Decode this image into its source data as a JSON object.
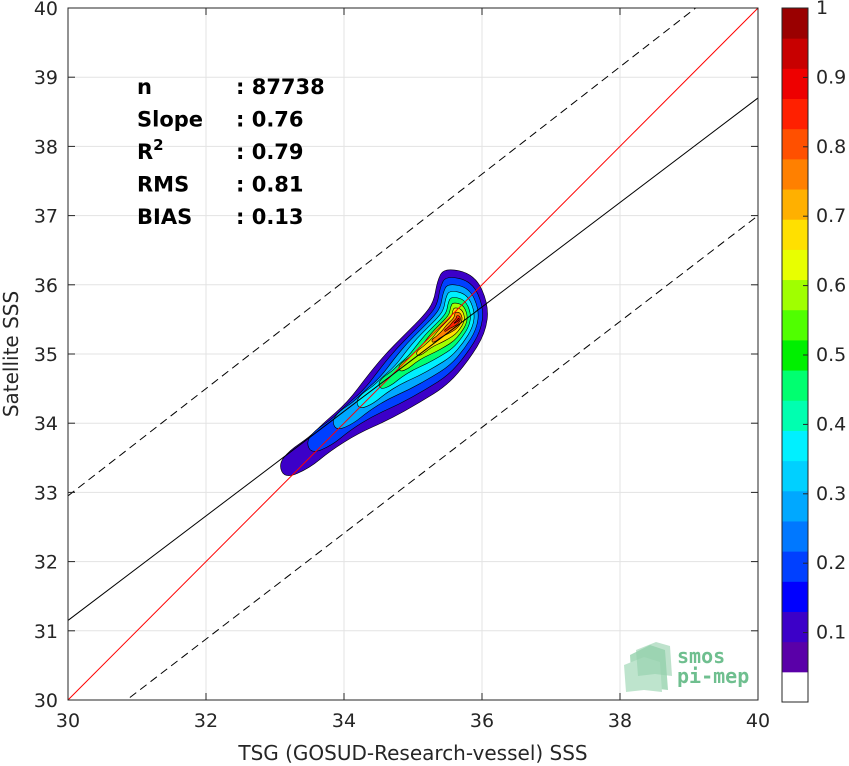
{
  "chart_data": {
    "type": "scatter",
    "subtype": "density-contour",
    "title": "",
    "xlabel": "TSG (GOSUD-Research-vessel) SSS",
    "ylabel": "Satellite SSS",
    "xlim": [
      30,
      40
    ],
    "ylim": [
      30,
      40
    ],
    "xticks": [
      30,
      32,
      34,
      36,
      38,
      40
    ],
    "yticks": [
      30,
      31,
      32,
      33,
      34,
      35,
      36,
      37,
      38,
      39,
      40
    ],
    "grid": true,
    "stats": [
      {
        "label": "n",
        "value": ": 87738"
      },
      {
        "label": "Slope",
        "value": ": 0.76"
      },
      {
        "label": "R",
        "sup": "2",
        "value": ": 0.79"
      },
      {
        "label": "RMS",
        "value": ": 0.81"
      },
      {
        "label": "BIAS",
        "value": ": 0.13"
      }
    ],
    "lines": [
      {
        "kind": "identity",
        "color": "#ff0000",
        "style": "solid",
        "from": [
          30,
          30
        ],
        "to": [
          40,
          40
        ]
      },
      {
        "kind": "fit",
        "color": "#000000",
        "style": "solid",
        "from": [
          30,
          31.15
        ],
        "to": [
          40,
          38.7
        ]
      },
      {
        "kind": "upper",
        "color": "#000000",
        "style": "dashed",
        "from": [
          30,
          32.95
        ],
        "to": [
          40,
          40.7
        ]
      },
      {
        "kind": "lower",
        "color": "#000000",
        "style": "dashed",
        "from": [
          30,
          29.35
        ],
        "to": [
          40,
          37.0
        ]
      }
    ],
    "density_peak": [
      35.55,
      35.5
    ],
    "contour_levels": [
      0.05,
      0.15,
      0.25,
      0.35,
      0.45,
      0.55,
      0.65,
      0.75,
      0.85,
      0.95
    ],
    "colorbar": {
      "range": [
        0,
        1
      ],
      "ticks": [
        "0.1",
        "0.2",
        "0.3",
        "0.4",
        "0.5",
        "0.6",
        "0.7",
        "0.8",
        "0.9",
        "1"
      ],
      "tick_values": [
        0.1,
        0.2,
        0.3,
        0.4,
        0.5,
        0.6,
        0.7,
        0.8,
        0.9,
        1.0
      ],
      "colors": [
        "#ffffff",
        "#5a00a8",
        "#3c00c8",
        "#0000ff",
        "#0040ff",
        "#0078ff",
        "#00a8ff",
        "#00d0ff",
        "#00f0ff",
        "#00ffb0",
        "#00ff70",
        "#00f000",
        "#50ff00",
        "#a0ff00",
        "#e8ff00",
        "#ffe000",
        "#ffb000",
        "#ff8000",
        "#ff5000",
        "#ff2000",
        "#ee0000",
        "#c80000",
        "#9a0000"
      ]
    }
  },
  "logo": {
    "line1": "smos",
    "line2": "pi-mep"
  }
}
